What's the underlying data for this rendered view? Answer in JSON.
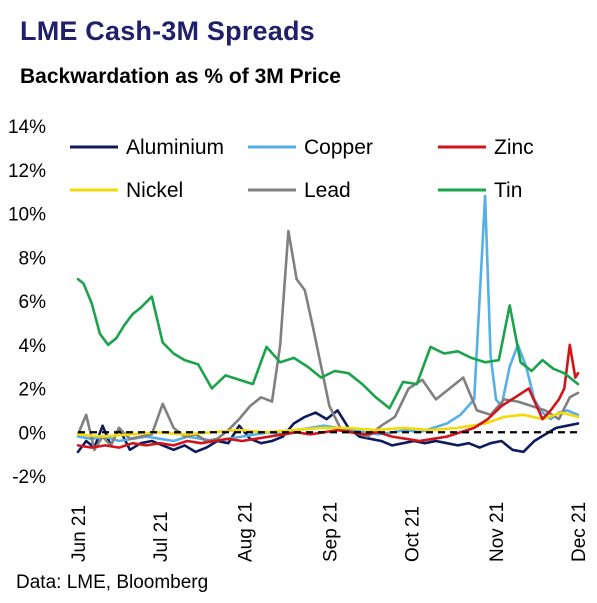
{
  "title": "LME Cash-3M Spreads",
  "subtitle": "Backwardation as % of 3M Price",
  "source": "Data: LME, Bloomberg",
  "chart_data": {
    "type": "line",
    "title": "LME Cash-3M Spreads",
    "subtitle": "Backwardation as % of 3M Price",
    "ylabel": "",
    "xlabel": "",
    "ylim": [
      -2,
      14
    ],
    "y_ticks": [
      -2,
      0,
      2,
      4,
      6,
      8,
      10,
      12,
      14
    ],
    "y_tick_labels": [
      "-2%",
      "0%",
      "2%",
      "4%",
      "6%",
      "8%",
      "10%",
      "12%",
      "14%"
    ],
    "x_ticks": [
      "2021-06-01",
      "2021-07-01",
      "2021-08-01",
      "2021-09-01",
      "2021-10-01",
      "2021-11-01",
      "2021-12-01"
    ],
    "x_tick_labels": [
      "Jun 21",
      "Jul 21",
      "Aug 21",
      "Sep 21",
      "Oct 21",
      "Nov 21",
      "Dec 21"
    ],
    "xlim": [
      "2021-06-01",
      "2021-12-01"
    ],
    "zero_line": "dashed",
    "grid": false,
    "legend": "top, two rows of three",
    "series": [
      {
        "name": "Aluminium",
        "color": "#0d1b5e",
        "x": [
          "2021-06-01",
          "2021-06-04",
          "2021-06-07",
          "2021-06-10",
          "2021-06-13",
          "2021-06-16",
          "2021-06-20",
          "2021-06-24",
          "2021-06-28",
          "2021-07-02",
          "2021-07-06",
          "2021-07-10",
          "2021-07-14",
          "2021-07-18",
          "2021-07-22",
          "2021-07-26",
          "2021-07-30",
          "2021-08-03",
          "2021-08-07",
          "2021-08-11",
          "2021-08-15",
          "2021-08-19",
          "2021-08-23",
          "2021-08-27",
          "2021-08-31",
          "2021-09-04",
          "2021-09-08",
          "2021-09-12",
          "2021-09-16",
          "2021-09-20",
          "2021-09-24",
          "2021-09-28",
          "2021-10-02",
          "2021-10-06",
          "2021-10-10",
          "2021-10-14",
          "2021-10-18",
          "2021-10-22",
          "2021-10-26",
          "2021-10-30",
          "2021-11-03",
          "2021-11-07",
          "2021-11-11",
          "2021-11-15",
          "2021-11-19",
          "2021-11-23",
          "2021-11-27",
          "2021-12-01"
        ],
        "values": [
          -0.9,
          -0.4,
          -0.7,
          0.3,
          -0.6,
          0.2,
          -0.8,
          -0.5,
          -0.4,
          -0.6,
          -0.8,
          -0.6,
          -0.9,
          -0.7,
          -0.4,
          -0.5,
          0.3,
          -0.3,
          -0.5,
          -0.4,
          -0.2,
          0.4,
          0.7,
          0.9,
          0.6,
          1.0,
          0.2,
          -0.2,
          -0.3,
          -0.4,
          -0.6,
          -0.5,
          -0.4,
          -0.5,
          -0.4,
          -0.5,
          -0.6,
          -0.5,
          -0.7,
          -0.5,
          -0.4,
          -0.8,
          -0.9,
          -0.4,
          -0.1,
          0.2,
          0.3,
          0.4
        ]
      },
      {
        "name": "Copper",
        "color": "#56b0e8",
        "x": [
          "2021-06-01",
          "2021-06-06",
          "2021-06-11",
          "2021-06-16",
          "2021-06-21",
          "2021-06-26",
          "2021-07-01",
          "2021-07-06",
          "2021-07-11",
          "2021-07-16",
          "2021-07-21",
          "2021-07-26",
          "2021-07-31",
          "2021-08-05",
          "2021-08-10",
          "2021-08-15",
          "2021-08-20",
          "2021-08-25",
          "2021-08-30",
          "2021-09-04",
          "2021-09-09",
          "2021-09-14",
          "2021-09-19",
          "2021-09-24",
          "2021-09-29",
          "2021-10-04",
          "2021-10-09",
          "2021-10-14",
          "2021-10-19",
          "2021-10-24",
          "2021-10-28",
          "2021-10-30",
          "2021-11-01",
          "2021-11-03",
          "2021-11-06",
          "2021-11-09",
          "2021-11-12",
          "2021-11-15",
          "2021-11-18",
          "2021-11-21",
          "2021-11-24",
          "2021-11-27",
          "2021-12-01"
        ],
        "values": [
          -0.2,
          -0.3,
          -0.2,
          -0.4,
          -0.3,
          -0.2,
          -0.3,
          -0.4,
          -0.2,
          -0.3,
          -0.4,
          -0.3,
          -0.2,
          -0.1,
          0.0,
          -0.1,
          0.1,
          0.2,
          0.3,
          0.2,
          0.1,
          0.0,
          -0.1,
          0.0,
          0.1,
          0.0,
          0.2,
          0.4,
          0.8,
          1.5,
          10.8,
          3.5,
          1.5,
          1.2,
          3.0,
          4.0,
          3.0,
          1.5,
          0.9,
          0.6,
          0.9,
          1.0,
          0.8
        ]
      },
      {
        "name": "Zinc",
        "color": "#d0141a",
        "x": [
          "2021-06-01",
          "2021-06-06",
          "2021-06-11",
          "2021-06-16",
          "2021-06-21",
          "2021-06-26",
          "2021-07-01",
          "2021-07-06",
          "2021-07-11",
          "2021-07-16",
          "2021-07-21",
          "2021-07-26",
          "2021-07-31",
          "2021-08-05",
          "2021-08-10",
          "2021-08-15",
          "2021-08-20",
          "2021-08-25",
          "2021-08-30",
          "2021-09-04",
          "2021-09-09",
          "2021-09-14",
          "2021-09-19",
          "2021-09-24",
          "2021-09-29",
          "2021-10-04",
          "2021-10-09",
          "2021-10-14",
          "2021-10-19",
          "2021-10-24",
          "2021-10-29",
          "2021-11-03",
          "2021-11-08",
          "2021-11-13",
          "2021-11-18",
          "2021-11-21",
          "2021-11-24",
          "2021-11-26",
          "2021-11-28",
          "2021-11-30",
          "2021-12-01"
        ],
        "values": [
          -0.6,
          -0.7,
          -0.6,
          -0.7,
          -0.5,
          -0.6,
          -0.5,
          -0.6,
          -0.4,
          -0.5,
          -0.4,
          -0.3,
          -0.4,
          -0.3,
          -0.2,
          -0.1,
          0.0,
          -0.1,
          0.0,
          0.1,
          0.0,
          -0.1,
          0.0,
          -0.2,
          -0.3,
          -0.4,
          -0.3,
          -0.2,
          0.0,
          0.2,
          0.6,
          1.2,
          1.6,
          2.0,
          0.6,
          1.0,
          1.5,
          2.0,
          4.0,
          2.5,
          2.7
        ]
      },
      {
        "name": "Nickel",
        "color": "#f5d90a",
        "x": [
          "2021-06-01",
          "2021-06-10",
          "2021-06-20",
          "2021-06-30",
          "2021-07-10",
          "2021-07-20",
          "2021-07-30",
          "2021-08-09",
          "2021-08-19",
          "2021-08-29",
          "2021-09-08",
          "2021-09-18",
          "2021-09-28",
          "2021-10-08",
          "2021-10-18",
          "2021-10-28",
          "2021-11-04",
          "2021-11-11",
          "2021-11-18",
          "2021-11-25",
          "2021-12-01"
        ],
        "values": [
          -0.1,
          -0.2,
          -0.1,
          0.0,
          -0.1,
          0.0,
          0.1,
          0.0,
          0.1,
          0.2,
          0.2,
          0.1,
          0.2,
          0.1,
          0.2,
          0.4,
          0.7,
          0.8,
          0.6,
          0.9,
          0.7
        ]
      },
      {
        "name": "Lead",
        "color": "#808080",
        "x": [
          "2021-06-01",
          "2021-06-04",
          "2021-06-07",
          "2021-06-10",
          "2021-06-13",
          "2021-06-16",
          "2021-06-20",
          "2021-06-24",
          "2021-06-28",
          "2021-07-02",
          "2021-07-06",
          "2021-07-10",
          "2021-07-14",
          "2021-07-18",
          "2021-07-22",
          "2021-07-26",
          "2021-07-30",
          "2021-08-03",
          "2021-08-07",
          "2021-08-11",
          "2021-08-14",
          "2021-08-17",
          "2021-08-20",
          "2021-08-23",
          "2021-08-26",
          "2021-08-29",
          "2021-09-01",
          "2021-09-05",
          "2021-09-10",
          "2021-09-15",
          "2021-09-20",
          "2021-09-25",
          "2021-09-30",
          "2021-10-05",
          "2021-10-10",
          "2021-10-15",
          "2021-10-20",
          "2021-10-25",
          "2021-10-30",
          "2021-11-04",
          "2021-11-09",
          "2021-11-14",
          "2021-11-19",
          "2021-11-24",
          "2021-11-28",
          "2021-12-01"
        ],
        "values": [
          -0.1,
          0.8,
          -0.8,
          -0.2,
          -0.6,
          0.2,
          -0.3,
          -0.2,
          -0.1,
          1.3,
          0.2,
          -0.2,
          -0.1,
          -0.4,
          -0.3,
          0.1,
          0.6,
          1.2,
          1.6,
          1.4,
          4.0,
          9.2,
          7.0,
          6.5,
          4.8,
          3.0,
          1.2,
          0.2,
          0.0,
          -0.2,
          0.3,
          0.7,
          2.0,
          2.4,
          1.5,
          2.0,
          2.5,
          1.0,
          0.8,
          1.5,
          1.4,
          1.2,
          1.0,
          0.6,
          1.6,
          1.8
        ]
      },
      {
        "name": "Tin",
        "color": "#1aa34a",
        "x": [
          "2021-06-01",
          "2021-06-03",
          "2021-06-06",
          "2021-06-09",
          "2021-06-12",
          "2021-06-15",
          "2021-06-18",
          "2021-06-21",
          "2021-06-24",
          "2021-06-28",
          "2021-07-02",
          "2021-07-06",
          "2021-07-10",
          "2021-07-15",
          "2021-07-20",
          "2021-07-25",
          "2021-07-30",
          "2021-08-04",
          "2021-08-09",
          "2021-08-14",
          "2021-08-19",
          "2021-08-24",
          "2021-08-29",
          "2021-09-03",
          "2021-09-08",
          "2021-09-13",
          "2021-09-18",
          "2021-09-23",
          "2021-09-28",
          "2021-10-03",
          "2021-10-08",
          "2021-10-13",
          "2021-10-18",
          "2021-10-23",
          "2021-10-28",
          "2021-11-02",
          "2021-11-06",
          "2021-11-10",
          "2021-11-14",
          "2021-11-18",
          "2021-11-22",
          "2021-11-26",
          "2021-12-01"
        ],
        "values": [
          7.0,
          6.8,
          5.9,
          4.5,
          4.0,
          4.3,
          4.9,
          5.4,
          5.7,
          6.2,
          4.1,
          3.6,
          3.3,
          3.1,
          2.0,
          2.6,
          2.4,
          2.2,
          3.9,
          3.2,
          3.4,
          3.0,
          2.5,
          2.8,
          2.7,
          2.2,
          1.6,
          1.1,
          2.3,
          2.2,
          3.9,
          3.6,
          3.7,
          3.4,
          3.2,
          3.3,
          5.8,
          3.2,
          2.8,
          3.3,
          2.9,
          2.7,
          2.2
        ]
      }
    ]
  }
}
